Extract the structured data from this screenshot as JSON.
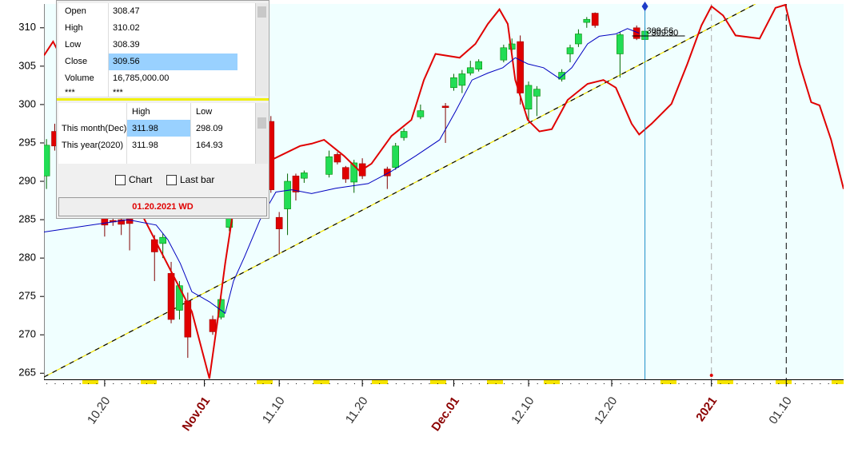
{
  "chart_data": {
    "type": "candlestick",
    "xlim": [
      -0.3,
      95.9
    ],
    "ylim": [
      264.2,
      313.1
    ],
    "yticks": [
      265,
      270,
      275,
      280,
      285,
      290,
      295,
      300,
      305,
      310
    ],
    "xticks": [
      {
        "value": 7,
        "label": "10.20"
      },
      {
        "value": 19,
        "label": "Nov.01",
        "color": "#8b0000"
      },
      {
        "value": 28,
        "label": "11.10"
      },
      {
        "value": 38,
        "label": "11.20"
      },
      {
        "value": 49,
        "label": "Dec.01",
        "color": "#8b0000"
      },
      {
        "value": 58,
        "label": "12.10"
      },
      {
        "value": 68,
        "label": "12.20"
      },
      {
        "value": 80,
        "label": "2021",
        "color": "#8b0000",
        "line_color": "#aaaaaa"
      },
      {
        "value": 89,
        "label": "01.10",
        "line_color": "#000000"
      }
    ],
    "up_color": "#22dd55",
    "down_color": "#e00000",
    "candles": {
      "x": [
        0,
        1,
        7,
        8,
        9,
        10,
        13,
        14,
        15,
        16,
        17,
        20,
        21,
        22,
        27,
        28,
        29,
        30,
        31,
        34,
        35,
        36,
        37,
        38,
        41,
        42,
        43,
        45,
        48,
        49,
        50,
        51,
        52,
        55,
        56,
        57,
        58,
        59,
        62,
        63,
        64,
        65,
        66,
        69,
        71,
        72
      ],
      "open": [
        290.7,
        296.5,
        285.3,
        284.9,
        285.0,
        285.3,
        282.4,
        281.9,
        278.0,
        273.2,
        274.4,
        272.0,
        272.3,
        284.0,
        297.8,
        285.3,
        286.4,
        290.7,
        290.4,
        290.9,
        293.5,
        291.8,
        289.9,
        292.3,
        291.6,
        291.8,
        295.7,
        298.4,
        299.8,
        302.2,
        302.5,
        304.1,
        304.6,
        305.8,
        307.2,
        308.2,
        299.4,
        301.1,
        303.3,
        306.6,
        307.9,
        310.7,
        311.9,
        306.6,
        310.0,
        308.47
      ],
      "high": [
        295.5,
        297.5,
        285.6,
        285.2,
        285.3,
        285.6,
        283.0,
        283.2,
        279.5,
        277.0,
        275.5,
        272.5,
        275.0,
        287.0,
        298.5,
        286.0,
        291.0,
        291.0,
        291.4,
        294.0,
        293.8,
        292.0,
        292.8,
        293.0,
        291.9,
        295.0,
        296.9,
        300.0,
        300.2,
        304.0,
        304.5,
        305.7,
        305.9,
        307.8,
        308.6,
        309.0,
        303.0,
        302.4,
        304.6,
        307.8,
        309.8,
        311.4,
        312.0,
        309.5,
        310.3,
        310.02
      ],
      "low": [
        289.0,
        294.0,
        282.8,
        284.2,
        283.0,
        281.0,
        277.0,
        280.0,
        271.5,
        272.0,
        267.0,
        270.0,
        272.0,
        283.5,
        288.5,
        280.5,
        283.0,
        287.5,
        289.8,
        290.5,
        292.2,
        289.8,
        288.5,
        290.3,
        289.0,
        291.5,
        295.3,
        298.1,
        295.0,
        301.8,
        301.5,
        303.8,
        304.3,
        305.5,
        306.9,
        300.0,
        298.0,
        298.5,
        303.0,
        305.5,
        307.5,
        310.0,
        310.0,
        303.5,
        308.4,
        308.39
      ],
      "close": [
        294.7,
        294.6,
        284.3,
        284.7,
        284.4,
        284.5,
        280.8,
        282.7,
        272.0,
        276.4,
        269.7,
        270.4,
        274.6,
        285.3,
        288.9,
        283.8,
        290.0,
        288.6,
        291.1,
        293.2,
        292.5,
        290.3,
        292.4,
        290.7,
        290.7,
        294.6,
        296.5,
        299.2,
        299.6,
        303.5,
        304.0,
        304.8,
        305.6,
        307.4,
        307.9,
        301.5,
        302.5,
        302.0,
        304.2,
        307.4,
        309.2,
        311.1,
        310.3,
        309.1,
        308.6,
        309.56
      ]
    },
    "lines": [
      {
        "color": "#e00000",
        "width": 2,
        "x": [
          -0.3,
          0.8,
          17.5,
          19.6,
          20.6,
          21.5,
          22.5,
          27.1,
          30.5,
          31.9,
          33.4,
          35.8,
          37.7,
          39.1,
          41.5,
          43.9,
          45.4,
          46.8,
          49.7,
          51.6,
          53.1,
          54.5,
          55.5,
          56.4,
          57.9,
          59.3,
          60.8,
          62.7,
          65.1,
          67.0,
          68.5,
          70.4,
          71.3,
          72.8,
          75.2,
          77.1,
          78.8,
          80.0,
          81.4,
          82.9,
          85.8,
          87.7,
          88.9,
          90.6,
          92.0,
          93.0,
          94.4,
          95.9
        ],
        "values": [
          306.4,
          308.2,
          273.0,
          264.3,
          272.0,
          279.3,
          286.4,
          292.8,
          294.6,
          294.9,
          295.4,
          293.3,
          291.3,
          292.3,
          295.9,
          298.0,
          303.2,
          306.6,
          306.1,
          307.9,
          310.5,
          312.4,
          310.5,
          303.2,
          298.0,
          296.5,
          296.8,
          300.6,
          302.7,
          303.2,
          302.2,
          297.5,
          296.1,
          297.5,
          300.1,
          305.3,
          310.3,
          312.8,
          311.6,
          309.0,
          308.6,
          312.6,
          313.0,
          305.3,
          300.3,
          299.9,
          295.4,
          289.0
        ]
      },
      {
        "color": "#0000c0",
        "width": 1,
        "x": [
          -0.3,
          9.8,
          13.2,
          14.6,
          16.1,
          17.5,
          19.6,
          21.5,
          22.5,
          23.8,
          25.7,
          27.6,
          29.5,
          31.9,
          34.8,
          38.7,
          41.5,
          44.4,
          47.3,
          49.2,
          51.2,
          53.1,
          54.9,
          56.4,
          57.9,
          59.8,
          61.7,
          63.2,
          65.1,
          66.5,
          68.5,
          69.9,
          71.3
        ],
        "values": [
          283.4,
          285.0,
          284.3,
          282.4,
          279.3,
          275.6,
          274.3,
          272.8,
          277.0,
          280.1,
          285.0,
          288.6,
          288.9,
          288.4,
          289.1,
          289.7,
          291.3,
          293.3,
          295.4,
          299.1,
          303.2,
          304.1,
          304.8,
          306.1,
          305.3,
          304.8,
          303.4,
          304.8,
          307.9,
          308.9,
          309.2,
          309.9,
          309.3
        ]
      }
    ],
    "trend_line": {
      "x": [
        -0.3,
        85.3
      ],
      "values": [
        264.5,
        313.1
      ]
    },
    "price_labels": [
      {
        "value": 309.56,
        "label": "309.56"
      },
      {
        "value": 309.3,
        "label": "309.30"
      }
    ]
  },
  "data_window": {
    "quote": [
      [
        "Open",
        "308.47"
      ],
      [
        "High",
        "310.02"
      ],
      [
        "Low",
        "308.39"
      ],
      [
        "Close",
        "309.56"
      ],
      [
        "Volume",
        "16,785,000.00"
      ],
      [
        "***",
        "***"
      ]
    ],
    "range": {
      "header": [
        "High",
        "Low"
      ],
      "rows": [
        [
          "This month(Dec)",
          "311.98",
          "298.09"
        ],
        [
          "This year(2020)",
          "311.98",
          "164.93"
        ]
      ]
    },
    "options": [
      "Chart",
      "Last bar"
    ],
    "footer": "01.20.2021 WD"
  }
}
